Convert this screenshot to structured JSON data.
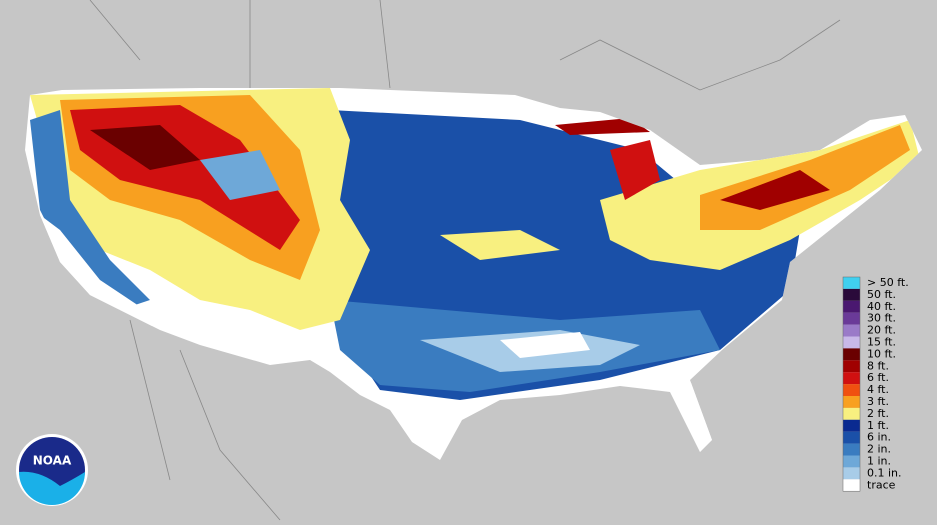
{
  "legend": {
    "items": [
      {
        "label": "> 50 ft.",
        "color": "#40d0f0"
      },
      {
        "label": "50 ft.",
        "color": "#2a0a3a"
      },
      {
        "label": "40 ft.",
        "color": "#4a1870"
      },
      {
        "label": "30 ft.",
        "color": "#6a3a98"
      },
      {
        "label": "20 ft.",
        "color": "#9a7ac8"
      },
      {
        "label": "15 ft.",
        "color": "#c8b8e8"
      },
      {
        "label": "10 ft.",
        "color": "#6a0000"
      },
      {
        "label": "8 ft.",
        "color": "#a00000"
      },
      {
        "label": "6 ft.",
        "color": "#d01010"
      },
      {
        "label": "4 ft.",
        "color": "#f05010"
      },
      {
        "label": "3 ft.",
        "color": "#f8a020"
      },
      {
        "label": "2 ft.",
        "color": "#f8f080"
      },
      {
        "label": "1 ft.",
        "color": "#0a2a90"
      },
      {
        "label": "6 in.",
        "color": "#1a50a8"
      },
      {
        "label": "2 in.",
        "color": "#3a7cc0"
      },
      {
        "label": "1 in.",
        "color": "#6ea8d8"
      },
      {
        "label": "0.1 in.",
        "color": "#a8cce8"
      },
      {
        "label": "trace",
        "color": "#ffffff"
      }
    ]
  },
  "logo": {
    "text": "NOAA"
  }
}
